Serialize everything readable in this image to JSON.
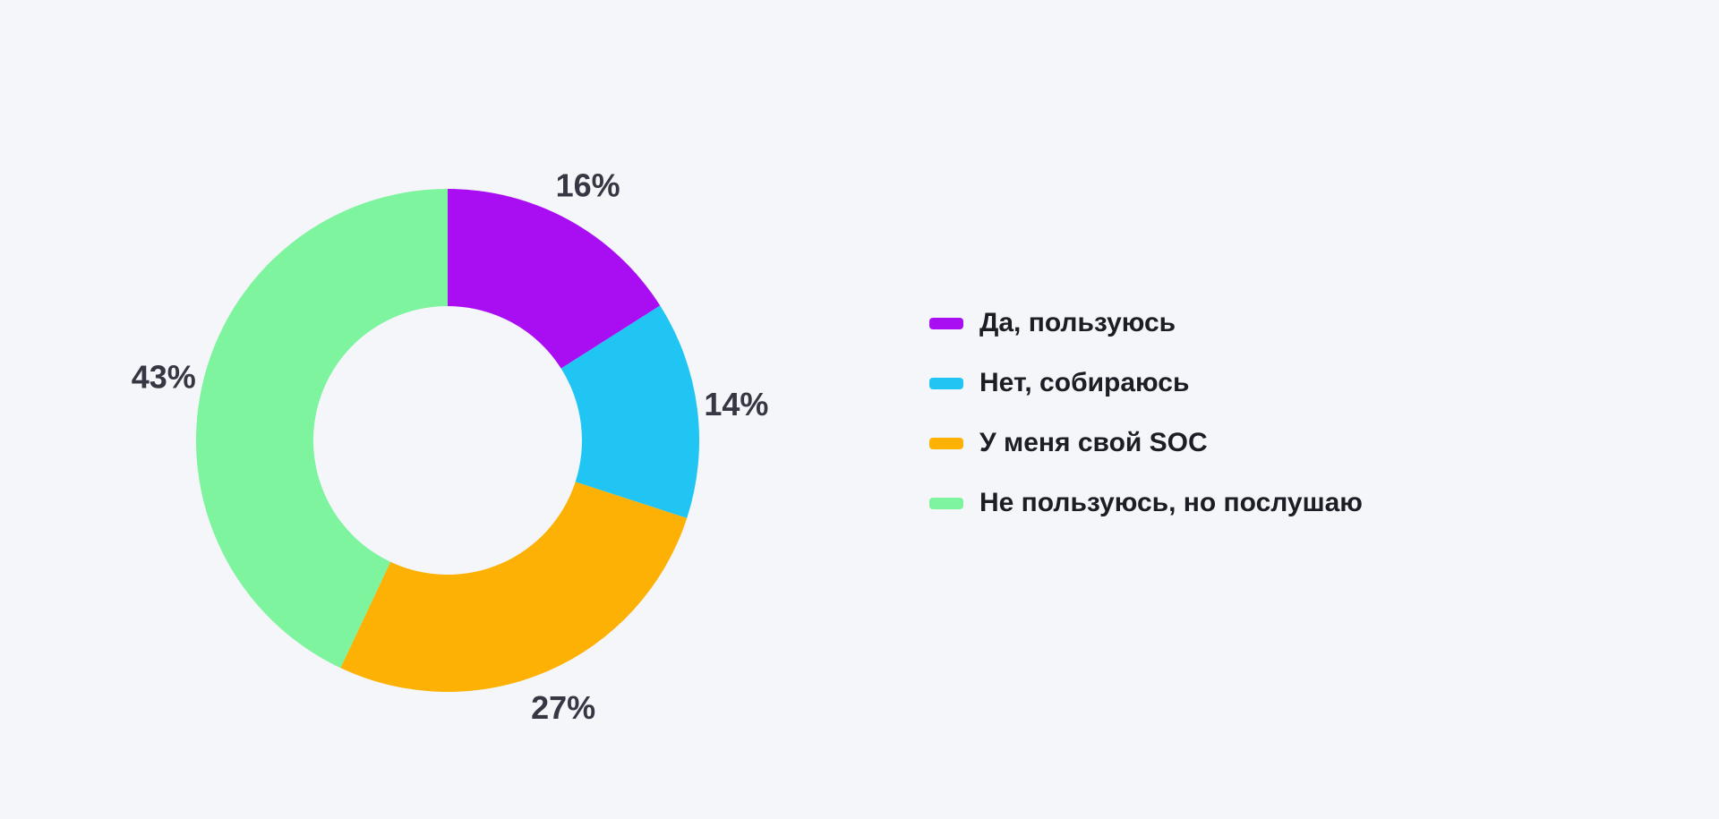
{
  "page": {
    "background_color": "#F5F6FA",
    "value_label_color": "#363743",
    "legend_label_color": "#1C1D25"
  },
  "chart_data": {
    "type": "pie",
    "subtype": "donut",
    "title": "",
    "categories": [
      "Да, пользуюсь",
      "Нет, собираюсь",
      "У меня свой SOC",
      "Не пользуюсь, но послушаю"
    ],
    "values": [
      16,
      14,
      27,
      43
    ],
    "unit": "%",
    "value_labels": [
      "16%",
      "14%",
      "27%",
      "43%"
    ],
    "colors": [
      "#A90DF1",
      "#20C5F4",
      "#FCB104",
      "#7DF49D"
    ],
    "start_angle_deg": 0,
    "direction": "clockwise",
    "inner_radius_ratio": 0.535,
    "grid": false,
    "legend_position": "right"
  },
  "legend": {
    "items": [
      {
        "label": "Да, пользуюсь",
        "color": "#A90DF1"
      },
      {
        "label": "Нет, собираюсь",
        "color": "#20C5F4"
      },
      {
        "label": "У меня свой SOC",
        "color": "#FCB104"
      },
      {
        "label": "Не пользуюсь, но послушаю",
        "color": "#7DF49D"
      }
    ]
  }
}
